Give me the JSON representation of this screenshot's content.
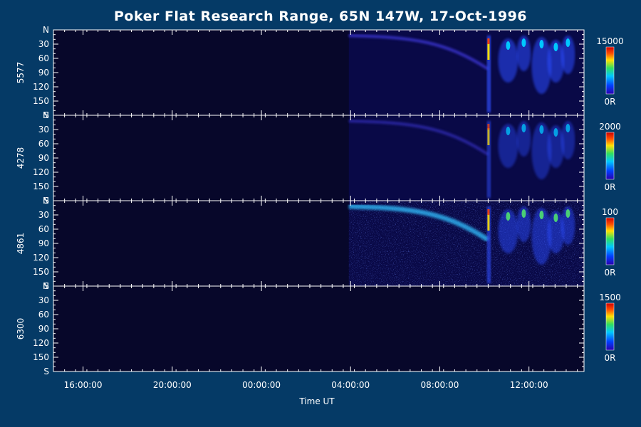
{
  "chart_data": {
    "type": "heatmap",
    "title": "Poker Flat Research Range, 65N 147W, 17-Oct-1996",
    "xlabel": "Time UT",
    "x_tick_labels": [
      "16:00:00",
      "20:00:00",
      "00:00:00",
      "04:00:00",
      "08:00:00",
      "12:00:00"
    ],
    "x_ticks_hours_from_start": [
      1.33,
      5.33,
      9.33,
      13.33,
      17.33,
      21.33
    ],
    "x_range_hours": [
      0,
      23.8
    ],
    "y_tick_labels": [
      "N",
      "30",
      "60",
      "90",
      "120",
      "150",
      "S"
    ],
    "y_range_deg": [
      0,
      180
    ],
    "panels": [
      {
        "ylabel": "5577",
        "colorbar_max": "15000",
        "colorbar_min": "0R"
      },
      {
        "ylabel": "4278",
        "colorbar_max": "2000",
        "colorbar_min": "0R"
      },
      {
        "ylabel": "4861",
        "colorbar_max": "100",
        "colorbar_min": "0R"
      },
      {
        "ylabel": "6300",
        "colorbar_max": "1500",
        "colorbar_min": "0R"
      }
    ],
    "data_onset_hours": 13.25,
    "breakup_hours": 19.5
  },
  "colors": {
    "background": "#053a66",
    "plot_background": "#07072a",
    "axis": "#ffffff",
    "colormap": [
      "#2a00b0",
      "#0040ff",
      "#00c8ff",
      "#30e060",
      "#ffe000",
      "#ff5000",
      "#d00000"
    ]
  }
}
